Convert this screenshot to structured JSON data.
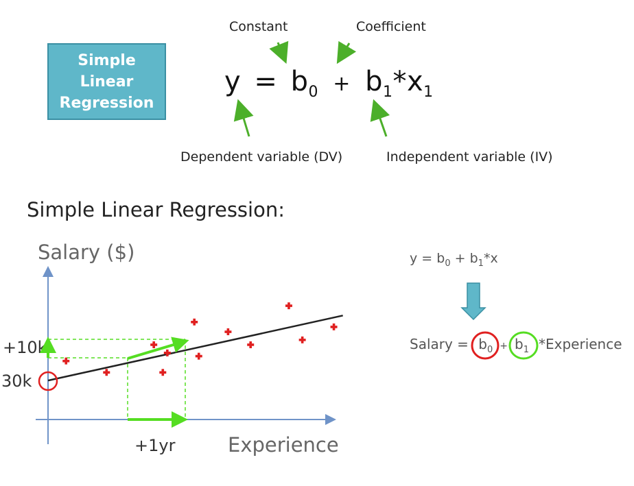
{
  "badge": {
    "line1": "Simple",
    "line2": "Linear",
    "line3": "Regression"
  },
  "equation": {
    "y": "y",
    "eq": "=",
    "b0": "b",
    "b0_sub": "0",
    "plus": "+",
    "b1": "b",
    "b1_sub": "1",
    "times": "*",
    "x1": "x",
    "x1_sub": "1"
  },
  "annotations": {
    "constant": "Constant",
    "coefficient": "Coefficient",
    "dv": "Dependent variable (DV)",
    "iv": "Independent variable (IV)"
  },
  "section_heading": "Simple Linear Regression:",
  "chart": {
    "y_axis_label": "Salary ($)",
    "x_axis_label": "Experience",
    "intercept_label": "30k",
    "slope_rise_label": "+10k",
    "slope_run_label": "+1yr"
  },
  "chart_data": {
    "type": "scatter",
    "xlabel": "Experience",
    "ylabel": "Salary ($)",
    "points": [
      {
        "x": 0.8,
        "y": 3.6
      },
      {
        "x": 2.6,
        "y": 2.9
      },
      {
        "x": 4.7,
        "y": 4.6
      },
      {
        "x": 5.3,
        "y": 4.1
      },
      {
        "x": 6.5,
        "y": 6.0
      },
      {
        "x": 5.1,
        "y": 2.9
      },
      {
        "x": 6.7,
        "y": 3.9
      },
      {
        "x": 8.0,
        "y": 5.4
      },
      {
        "x": 9.0,
        "y": 4.6
      },
      {
        "x": 10.7,
        "y": 7.0
      },
      {
        "x": 11.3,
        "y": 4.9
      },
      {
        "x": 12.7,
        "y": 5.7
      }
    ],
    "regression_line": {
      "x_start": 0,
      "y_start": 2.4,
      "x_end": 13.1,
      "y_end": 6.4
    }
  },
  "right_panel": {
    "eq_prefix": "y = b",
    "eq_sub0": "0",
    "eq_mid": " + b",
    "eq_sub1": "1",
    "eq_suffix": "*x",
    "salary_prefix": "Salary = ",
    "salary_b0": "b",
    "salary_b0_sub": "0",
    "salary_plus": "+",
    "salary_b1": "b",
    "salary_b1_sub": "1",
    "salary_suffix": "*Experience"
  },
  "colors": {
    "badge_bg": "#5fb7c9",
    "arrow_green": "#4caf2a",
    "bright_green": "#55dd22",
    "red": "#e02020",
    "axis_blue": "#6f93c8",
    "down_arrow": "#5fb7c9"
  }
}
